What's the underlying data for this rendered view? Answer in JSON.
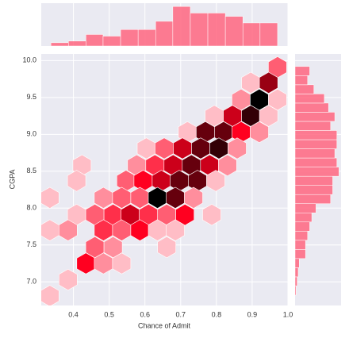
{
  "chart_data": [
    {
      "type": "hexbin",
      "xlabel": "Chance of Admit",
      "ylabel": "CGPA",
      "color": "#ff0020",
      "xlim": [
        0.31,
        1.0
      ],
      "ylim": [
        6.68,
        10.09
      ],
      "xticks": [
        0.4,
        0.5,
        0.6,
        0.7,
        0.8,
        0.9,
        {
          "value": 1,
          "label": "1.0"
        }
      ],
      "yticks": [
        {
          "value": 7,
          "label": "7.0"
        },
        7.5,
        {
          "value": 8,
          "label": "8.0"
        },
        8.5,
        {
          "value": 9,
          "label": "9.0"
        },
        9.5,
        {
          "value": 10,
          "label": "10.0"
        }
      ],
      "grid": true,
      "x": [
        0.971,
        0.896,
        0.946,
        0.869,
        0.92,
        0.971,
        0.794,
        0.845,
        0.896,
        0.946,
        0.719,
        0.769,
        0.82,
        0.869,
        0.92,
        0.604,
        0.654,
        0.705,
        0.756,
        0.807,
        0.858,
        0.424,
        0.577,
        0.628,
        0.679,
        0.73,
        0.781,
        0.831,
        0.409,
        0.547,
        0.595,
        0.646,
        0.696,
        0.747,
        0.798,
        0.334,
        0.484,
        0.535,
        0.586,
        0.635,
        0.685,
        0.736,
        0.409,
        0.46,
        0.511,
        0.559,
        0.61,
        0.661,
        0.712,
        0.787,
        0.334,
        0.385,
        0.484,
        0.535,
        0.586,
        0.635,
        0.685,
        0.46,
        0.511,
        0.661,
        0.435,
        0.484,
        0.535,
        0.385,
        0.334
      ],
      "y": [
        9.91,
        9.7,
        9.7,
        9.47,
        9.47,
        9.47,
        9.25,
        9.25,
        9.25,
        9.25,
        9.03,
        9.03,
        9.03,
        9.03,
        9.03,
        8.81,
        8.81,
        8.81,
        8.81,
        8.81,
        8.81,
        8.58,
        8.58,
        8.58,
        8.58,
        8.58,
        8.58,
        8.58,
        8.37,
        8.37,
        8.37,
        8.37,
        8.37,
        8.37,
        8.37,
        8.14,
        8.14,
        8.14,
        8.14,
        8.14,
        8.14,
        8.14,
        7.91,
        7.91,
        7.91,
        7.91,
        7.91,
        7.91,
        7.91,
        7.91,
        7.7,
        7.7,
        7.7,
        7.7,
        7.7,
        7.7,
        7.7,
        7.47,
        7.47,
        7.47,
        7.25,
        7.25,
        7.25,
        7.03,
        6.81
      ],
      "values": [
        3,
        1,
        7,
        2,
        10,
        1,
        1,
        6,
        9,
        1,
        1,
        8,
        8,
        5,
        2,
        1,
        3,
        6,
        8,
        9,
        2,
        1,
        2,
        4,
        6,
        8,
        6,
        2,
        1,
        3,
        5,
        6,
        8,
        8,
        1,
        1,
        2,
        3,
        3,
        10,
        8,
        2,
        1,
        3,
        4,
        6,
        4,
        3,
        5,
        1,
        1,
        2,
        4,
        3,
        5,
        1,
        1,
        3,
        2,
        1,
        5,
        2,
        1,
        1,
        1
      ]
    },
    {
      "type": "histogram",
      "color": "#ff6680",
      "xlim": [
        0.31,
        1.0
      ],
      "ylim": [
        0,
        26
      ],
      "bins": [
        0.337,
        0.386,
        0.435,
        0.483,
        0.532,
        0.581,
        0.63,
        0.678,
        0.727,
        0.776,
        0.825,
        0.874,
        0.922,
        0.971
      ],
      "values": [
        2,
        3,
        7,
        6,
        10,
        10,
        15,
        24,
        20,
        20,
        18,
        14,
        14
      ]
    },
    {
      "type": "histogram",
      "orientation": "horizontal",
      "color": "#ff6680",
      "xlim": [
        0,
        44
      ],
      "ylim": [
        6.68,
        10.09
      ],
      "bins": [
        6.82,
        6.944,
        7.068,
        7.192,
        7.316,
        7.44,
        7.564,
        7.688,
        7.812,
        7.936,
        8.06,
        8.184,
        8.308,
        8.432,
        8.556,
        8.68,
        8.804,
        8.928,
        9.052,
        9.176,
        9.3,
        9.424,
        9.548,
        9.672,
        9.796,
        9.92
      ],
      "values": [
        1,
        2,
        3,
        4,
        10,
        10,
        12,
        14,
        16,
        20,
        34,
        36,
        36,
        42,
        40,
        38,
        40,
        40,
        34,
        38,
        32,
        28,
        18,
        12,
        14
      ]
    }
  ]
}
